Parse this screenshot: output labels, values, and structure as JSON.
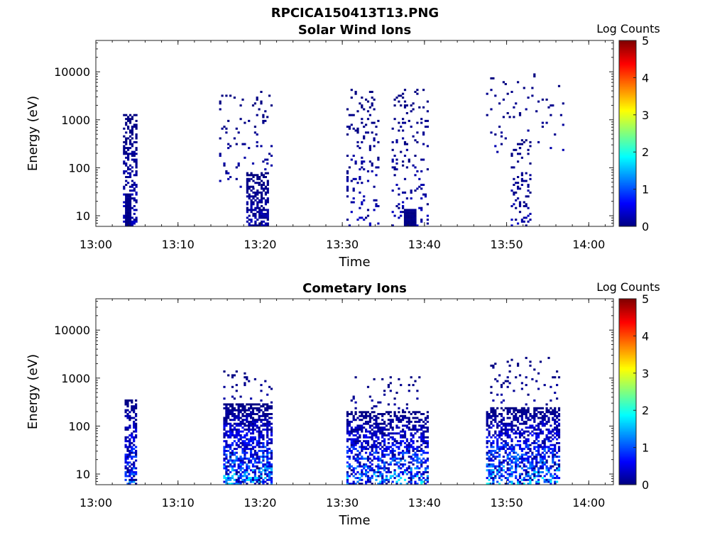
{
  "figure": {
    "title": "RPCICA150413T13.PNG"
  },
  "chart_data": [
    {
      "type": "heatmap",
      "title": "Solar Wind Ions",
      "xlabel": "Time",
      "ylabel": "Energy (eV)",
      "xticks": [
        "13:00",
        "13:10",
        "13:20",
        "13:30",
        "13:40",
        "13:50",
        "14:00"
      ],
      "xlim": [
        "13:00",
        "14:03"
      ],
      "yticks": [
        10,
        100,
        1000,
        10000
      ],
      "ylim": [
        6,
        45000
      ],
      "yscale": "log",
      "colorbar": {
        "label": "Log Counts",
        "ticks": [
          0,
          1,
          2,
          3,
          4,
          5
        ],
        "range": [
          0,
          5
        ],
        "colormap": "jet"
      },
      "clusters": [
        {
          "t": [
            3.3,
            5.0
          ],
          "e": [
            6,
            1300
          ],
          "c": [
            0.0,
            0.5
          ],
          "density": 0.45,
          "solid": [
            {
              "t": [
                3.5,
                4.2
              ],
              "e": [
                6,
                28
              ],
              "c": [
                0.0,
                0.1
              ]
            }
          ]
        },
        {
          "t": [
            15.0,
            21.5
          ],
          "e": [
            40,
            4000
          ],
          "c": [
            0.0,
            0.3
          ],
          "density": 0.07,
          "solid": []
        },
        {
          "t": [
            18.3,
            21.0
          ],
          "e": [
            6,
            80
          ],
          "c": [
            0.0,
            0.4
          ],
          "density": 0.55,
          "solid": []
        },
        {
          "t": [
            30.5,
            34.5
          ],
          "e": [
            6,
            4500
          ],
          "c": [
            0.0,
            0.4
          ],
          "density": 0.12,
          "solid": []
        },
        {
          "t": [
            36.0,
            40.5
          ],
          "e": [
            6,
            5000
          ],
          "c": [
            0.0,
            0.4
          ],
          "density": 0.12,
          "solid": [
            {
              "t": [
                37.5,
                39.0
              ],
              "e": [
                6,
                14
              ],
              "c": [
                0.0,
                0.1
              ]
            }
          ]
        },
        {
          "t": [
            47.5,
            57.0
          ],
          "e": [
            200,
            9000
          ],
          "c": [
            0.0,
            0.3
          ],
          "density": 0.04,
          "solid": []
        },
        {
          "t": [
            50.5,
            53.0
          ],
          "e": [
            6,
            400
          ],
          "c": [
            0.0,
            0.4
          ],
          "density": 0.18,
          "solid": []
        }
      ]
    },
    {
      "type": "heatmap",
      "title": "Cometary Ions",
      "xlabel": "Time",
      "ylabel": "Energy (eV)",
      "xticks": [
        "13:00",
        "13:10",
        "13:20",
        "13:30",
        "13:40",
        "13:50",
        "14:00"
      ],
      "xlim": [
        "13:00",
        "14:03"
      ],
      "yticks": [
        10,
        100,
        1000,
        10000
      ],
      "ylim": [
        6,
        45000
      ],
      "yscale": "log",
      "colorbar": {
        "label": "Log Counts",
        "ticks": [
          0,
          1,
          2,
          3,
          4,
          5
        ],
        "range": [
          0,
          5
        ],
        "colormap": "jet"
      },
      "clusters": [
        {
          "t": [
            3.5,
            5.0
          ],
          "e": [
            6,
            350
          ],
          "c": [
            0.0,
            1.6
          ],
          "density": 0.6,
          "solid": []
        },
        {
          "t": [
            15.5,
            21.5
          ],
          "e": [
            6,
            300
          ],
          "c": [
            0.0,
            2.0
          ],
          "density": 0.6,
          "solid": []
        },
        {
          "t": [
            15.5,
            21.5
          ],
          "e": [
            250,
            1500
          ],
          "c": [
            0.0,
            0.3
          ],
          "density": 0.08,
          "solid": []
        },
        {
          "t": [
            30.5,
            40.5
          ],
          "e": [
            6,
            200
          ],
          "c": [
            0.0,
            2.0
          ],
          "density": 0.5,
          "solid": []
        },
        {
          "t": [
            31.0,
            39.5
          ],
          "e": [
            200,
            1100
          ],
          "c": [
            0.0,
            0.3
          ],
          "density": 0.07,
          "solid": []
        },
        {
          "t": [
            47.5,
            56.5
          ],
          "e": [
            6,
            250
          ],
          "c": [
            0.0,
            2.1
          ],
          "density": 0.55,
          "solid": []
        },
        {
          "t": [
            48.0,
            56.5
          ],
          "e": [
            200,
            2800
          ],
          "c": [
            0.0,
            0.3
          ],
          "density": 0.06,
          "solid": []
        }
      ]
    }
  ]
}
